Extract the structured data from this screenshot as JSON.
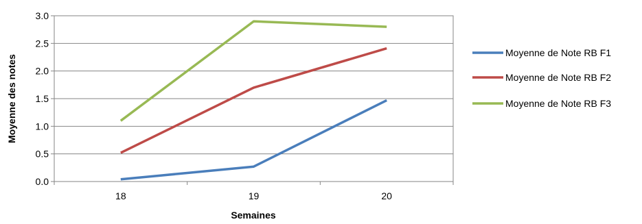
{
  "chart_data": {
    "type": "line",
    "title": "",
    "xlabel": "Semaines",
    "ylabel": "Moyenne des notes",
    "categories": [
      "18",
      "19",
      "20"
    ],
    "ylim": [
      0,
      3.0
    ],
    "yticks": [
      "0.0",
      "0.5",
      "1.0",
      "1.5",
      "2.0",
      "2.5",
      "3.0"
    ],
    "grid": true,
    "legend_position": "right",
    "series": [
      {
        "name": "Moyenne de Note RB F1",
        "color": "#4a7ebb",
        "values": [
          0.04,
          0.27,
          1.47
        ]
      },
      {
        "name": "Moyenne de Note RB F2",
        "color": "#be4b48",
        "values": [
          0.52,
          1.7,
          2.41
        ]
      },
      {
        "name": "Moyenne de Note RB F3",
        "color": "#98b954",
        "values": [
          1.1,
          2.9,
          2.8
        ]
      }
    ]
  }
}
